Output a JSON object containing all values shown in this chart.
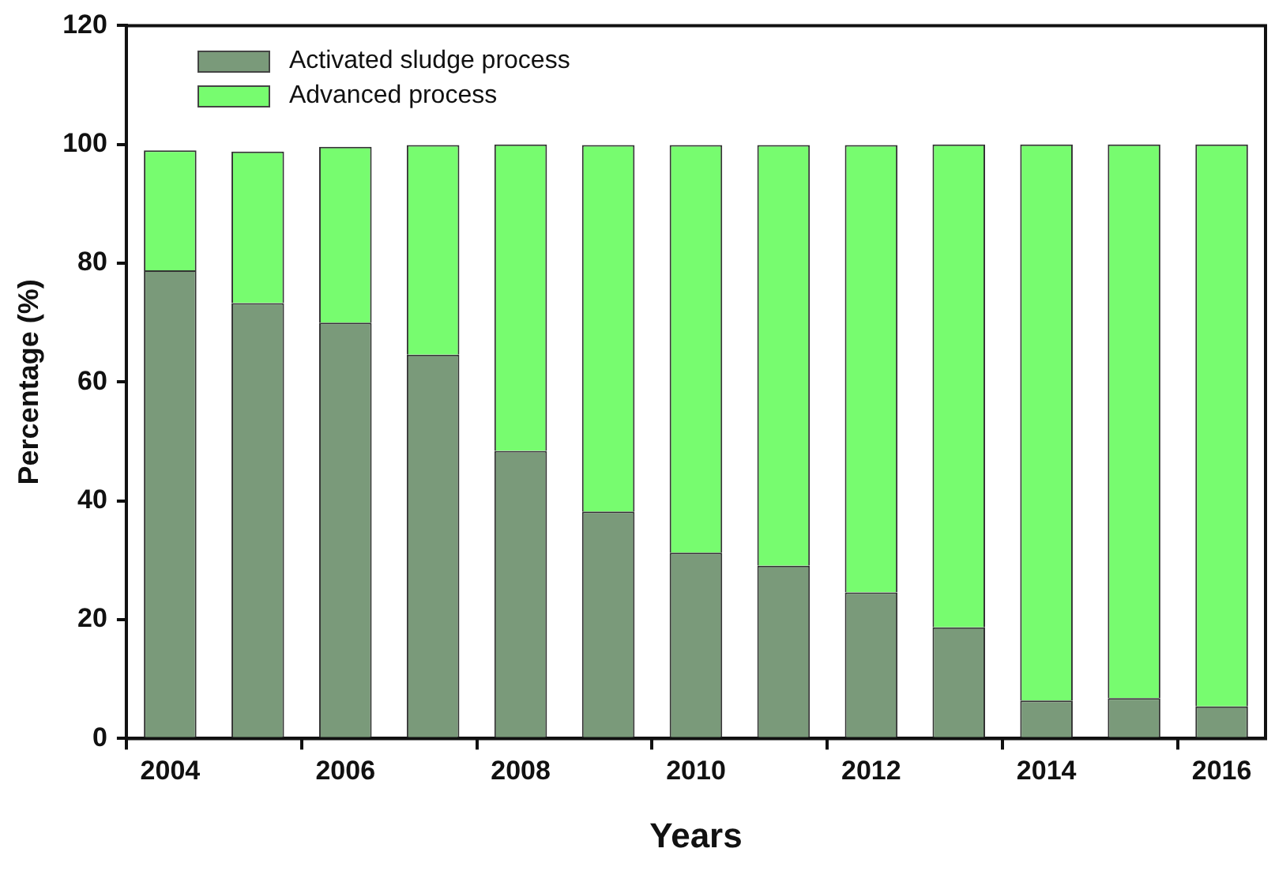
{
  "chart_data": {
    "type": "bar",
    "stacked": true,
    "categories": [
      "2004",
      null,
      "2006",
      null,
      "2008",
      null,
      "2010",
      null,
      "2012",
      null,
      "2014",
      null,
      "2016"
    ],
    "series": [
      {
        "name": "Activated sludge process",
        "color": "#7a9a7a",
        "values": [
          78.8,
          73.3,
          70.0,
          64.6,
          48.4,
          38.2,
          31.3,
          29.1,
          24.6,
          18.7,
          6.4,
          6.8,
          5.4
        ]
      },
      {
        "name": "Advanced process",
        "color": "#77fc6f",
        "values": [
          20.2,
          25.5,
          29.6,
          35.3,
          51.6,
          61.7,
          68.6,
          70.8,
          75.3,
          81.3,
          93.6,
          93.2,
          94.6
        ]
      }
    ],
    "xlabel": "Years",
    "ylabel": "Percentage (%)",
    "ylim": [
      0,
      120
    ],
    "yticks": [
      0,
      20,
      40,
      60,
      80,
      100,
      120
    ],
    "grid": false,
    "legend": "top left"
  }
}
